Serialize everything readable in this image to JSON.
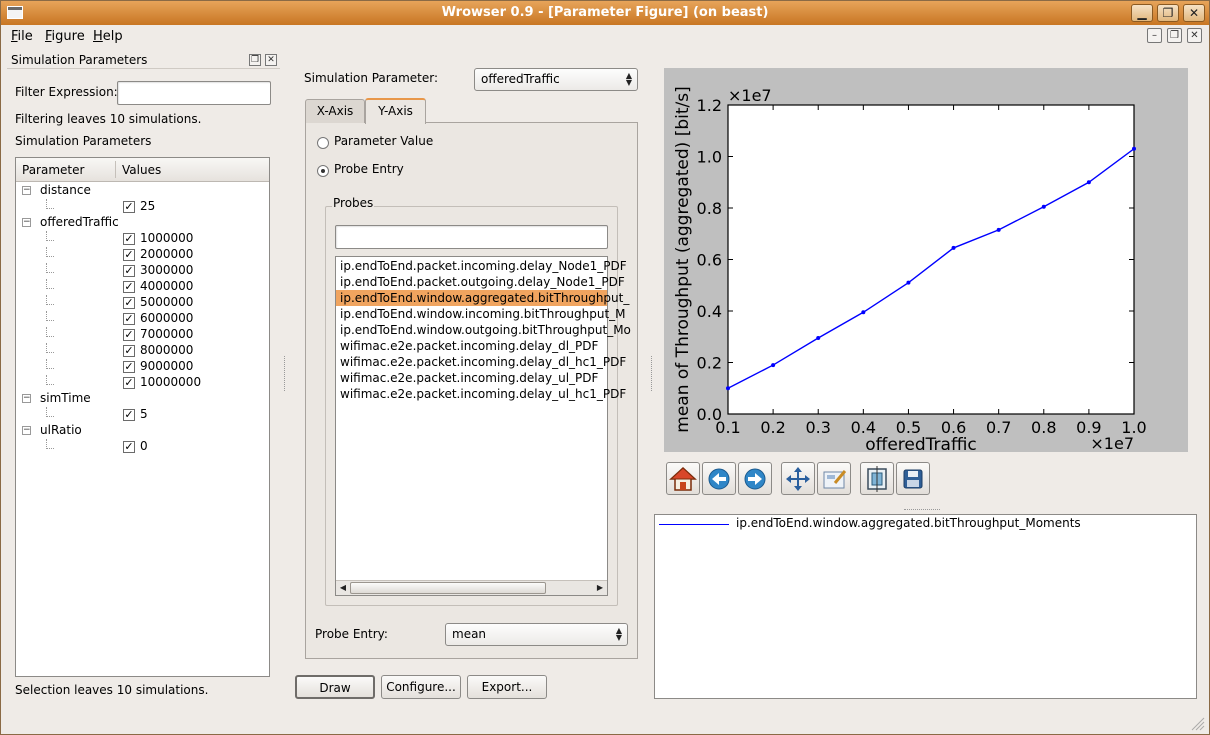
{
  "window": {
    "title": "Wrowser 0.9 - [Parameter Figure] (on beast)"
  },
  "menu": [
    {
      "label": "File",
      "key": "F",
      "rest": "ile"
    },
    {
      "label": "Figure",
      "key": "F",
      "rest": "igure"
    },
    {
      "label": "Help",
      "key": "H",
      "rest": "elp"
    }
  ],
  "left_panel": {
    "title": "Simulation Parameters",
    "filter_label": "Filter Expression:",
    "filter_value": "",
    "filter_status": "Filtering leaves 10 simulations.",
    "section_label": "Simulation Parameters",
    "tree_headers": {
      "parameter": "Parameter",
      "values": "Values"
    },
    "parameters": [
      {
        "name": "distance",
        "values": [
          "25"
        ]
      },
      {
        "name": "offeredTraffic",
        "values": [
          "1000000",
          "2000000",
          "3000000",
          "4000000",
          "5000000",
          "6000000",
          "7000000",
          "8000000",
          "9000000",
          "10000000"
        ]
      },
      {
        "name": "simTime",
        "values": [
          "5"
        ]
      },
      {
        "name": "ulRatio",
        "values": [
          "0"
        ]
      }
    ],
    "selection_status": "Selection leaves 10 simulations."
  },
  "middle_panel": {
    "sim_param_label": "Simulation Parameter:",
    "sim_param_value": "offeredTraffic",
    "tabs": [
      "X-Axis",
      "Y-Axis"
    ],
    "active_tab": "Y-Axis",
    "radio_parameter_value": "Parameter Value",
    "radio_probe_entry": "Probe Entry",
    "probes_group_label": "Probes",
    "probe_filter_value": "",
    "probes": [
      "ip.endToEnd.packet.incoming.delay_Node1_PDF",
      "ip.endToEnd.packet.outgoing.delay_Node1_PDF",
      "ip.endToEnd.window.aggregated.bitThroughput_",
      "ip.endToEnd.window.incoming.bitThroughput_M",
      "ip.endToEnd.window.outgoing.bitThroughput_Mo",
      "wifimac.e2e.packet.incoming.delay_dl_PDF",
      "wifimac.e2e.packet.incoming.delay_dl_hc1_PDF",
      "wifimac.e2e.packet.incoming.delay_ul_PDF",
      "wifimac.e2e.packet.incoming.delay_ul_hc1_PDF"
    ],
    "selected_probe_index": 2,
    "probe_entry_label": "Probe Entry:",
    "probe_entry_value": "mean",
    "buttons": {
      "draw": "Draw",
      "configure": "Configure...",
      "export": "Export..."
    }
  },
  "toolbar_icons": [
    "home-icon",
    "back-icon",
    "forward-icon",
    "pan-icon",
    "configure-subplots-icon",
    "zoom-rect-icon",
    "save-icon"
  ],
  "chart_data": {
    "type": "line",
    "x": [
      0.1,
      0.2,
      0.3,
      0.4,
      0.5,
      0.6,
      0.7,
      0.8,
      0.9,
      1.0
    ],
    "series": [
      {
        "name": "ip.endToEnd.window.aggregated.bitThroughput_Moments",
        "values": [
          0.1,
          0.19,
          0.295,
          0.395,
          0.51,
          0.645,
          0.715,
          0.805,
          0.9,
          1.03
        ],
        "color": "#0000ff"
      }
    ],
    "xlabel": "offeredTraffic",
    "ylabel": "mean of Throughput (aggregated) [bit/s]",
    "x_multiplier": "×1e7",
    "y_multiplier": "×1e7",
    "xlim": [
      0.1,
      1.0
    ],
    "ylim": [
      0.0,
      1.2
    ],
    "xticks": [
      "0.1",
      "0.2",
      "0.3",
      "0.4",
      "0.5",
      "0.6",
      "0.7",
      "0.8",
      "0.9",
      "1.0"
    ],
    "yticks": [
      "0.0",
      "0.2",
      "0.4",
      "0.6",
      "0.8",
      "1.0",
      "1.2"
    ],
    "grid": false,
    "legend": "below-plot"
  },
  "colors": {
    "titlebar": "#d9893a",
    "selection": "#f0a45f",
    "plot_background": "#bfbfbf",
    "line": "#0000ff"
  }
}
